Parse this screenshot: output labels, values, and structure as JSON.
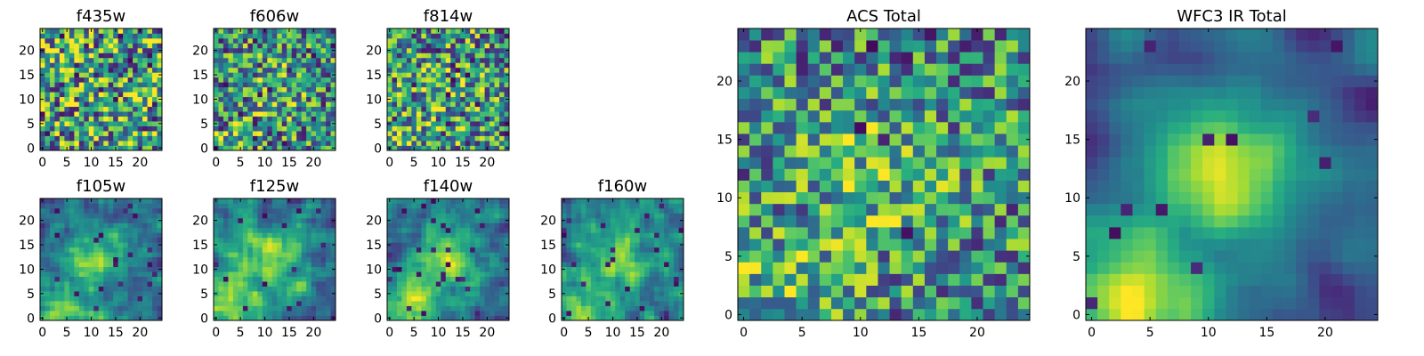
{
  "chart_data": [
    {
      "type": "heatmap",
      "title": "f435w",
      "grid": false,
      "size": [
        25,
        25
      ],
      "xlim": [
        0,
        24
      ],
      "ylim": [
        0,
        24
      ],
      "xticks": [
        0,
        5,
        10,
        15,
        20
      ],
      "yticks": [
        0,
        5,
        10,
        15,
        20
      ],
      "colormap": "viridis",
      "seed": 11,
      "smooth": 0,
      "trend": 0.0,
      "holes": 0.05
    },
    {
      "type": "heatmap",
      "title": "f606w",
      "grid": false,
      "size": [
        25,
        25
      ],
      "xlim": [
        0,
        24
      ],
      "ylim": [
        0,
        24
      ],
      "xticks": [
        0,
        5,
        10,
        15,
        20
      ],
      "yticks": [
        0,
        5,
        10,
        15,
        20
      ],
      "colormap": "viridis",
      "seed": 23,
      "smooth": 0,
      "trend": 0.15,
      "holes": 0.05
    },
    {
      "type": "heatmap",
      "title": "f814w",
      "grid": false,
      "size": [
        25,
        25
      ],
      "xlim": [
        0,
        24
      ],
      "ylim": [
        0,
        24
      ],
      "xticks": [
        0,
        5,
        10,
        15,
        20
      ],
      "yticks": [
        0,
        5,
        10,
        15,
        20
      ],
      "colormap": "viridis",
      "seed": 37,
      "smooth": 0,
      "trend": 0.1,
      "holes": 0.05
    },
    {
      "type": "heatmap",
      "title": "f105w",
      "grid": false,
      "size": [
        25,
        25
      ],
      "xlim": [
        0,
        24
      ],
      "ylim": [
        0,
        24
      ],
      "xticks": [
        0,
        5,
        10,
        15,
        20
      ],
      "yticks": [
        0,
        5,
        10,
        15,
        20
      ],
      "colormap": "viridis",
      "seed": 41,
      "smooth": 1,
      "trend": 0.45,
      "holes": 0.03
    },
    {
      "type": "heatmap",
      "title": "f125w",
      "grid": false,
      "size": [
        25,
        25
      ],
      "xlim": [
        0,
        24
      ],
      "ylim": [
        0,
        24
      ],
      "xticks": [
        0,
        5,
        10,
        15,
        20
      ],
      "yticks": [
        0,
        5,
        10,
        15,
        20
      ],
      "colormap": "viridis",
      "seed": 53,
      "smooth": 1,
      "trend": 0.35,
      "holes": 0.03
    },
    {
      "type": "heatmap",
      "title": "f140w",
      "grid": false,
      "size": [
        25,
        25
      ],
      "xlim": [
        0,
        24
      ],
      "ylim": [
        0,
        24
      ],
      "xticks": [
        0,
        5,
        10,
        15,
        20
      ],
      "yticks": [
        0,
        5,
        10,
        15,
        20
      ],
      "colormap": "viridis",
      "seed": 67,
      "smooth": 1,
      "trend": 0.45,
      "holes": 0.03
    },
    {
      "type": "heatmap",
      "title": "f160w",
      "grid": false,
      "size": [
        25,
        25
      ],
      "xlim": [
        0,
        24
      ],
      "ylim": [
        0,
        24
      ],
      "xticks": [
        0,
        5,
        10,
        15,
        20
      ],
      "yticks": [
        0,
        5,
        10,
        15,
        20
      ],
      "colormap": "viridis",
      "seed": 79,
      "smooth": 1,
      "trend": 0.4,
      "holes": 0.05
    },
    {
      "type": "heatmap",
      "title": "ACS Total",
      "grid": false,
      "size": [
        25,
        25
      ],
      "xlim": [
        0,
        24
      ],
      "ylim": [
        0,
        24
      ],
      "xticks": [
        0,
        5,
        10,
        15,
        20
      ],
      "yticks": [
        0,
        5,
        10,
        15,
        20
      ],
      "colormap": "viridis",
      "seed": 97,
      "smooth": 0,
      "trend": 0.2,
      "holes": 0.025
    },
    {
      "type": "heatmap",
      "title": "WFC3 IR Total",
      "grid": false,
      "size": [
        25,
        25
      ],
      "xlim": [
        0,
        24
      ],
      "ylim": [
        0,
        24
      ],
      "xticks": [
        0,
        5,
        10,
        15,
        20
      ],
      "yticks": [
        0,
        5,
        10,
        15,
        20
      ],
      "colormap": "viridis",
      "seed": 113,
      "smooth": 2,
      "trend": 0.6,
      "holes": 0.02
    }
  ],
  "colors": {
    "viridis_low": "#440154",
    "viridis_mid": "#21918c",
    "viridis_high": "#fde725",
    "axis": "#000000"
  }
}
